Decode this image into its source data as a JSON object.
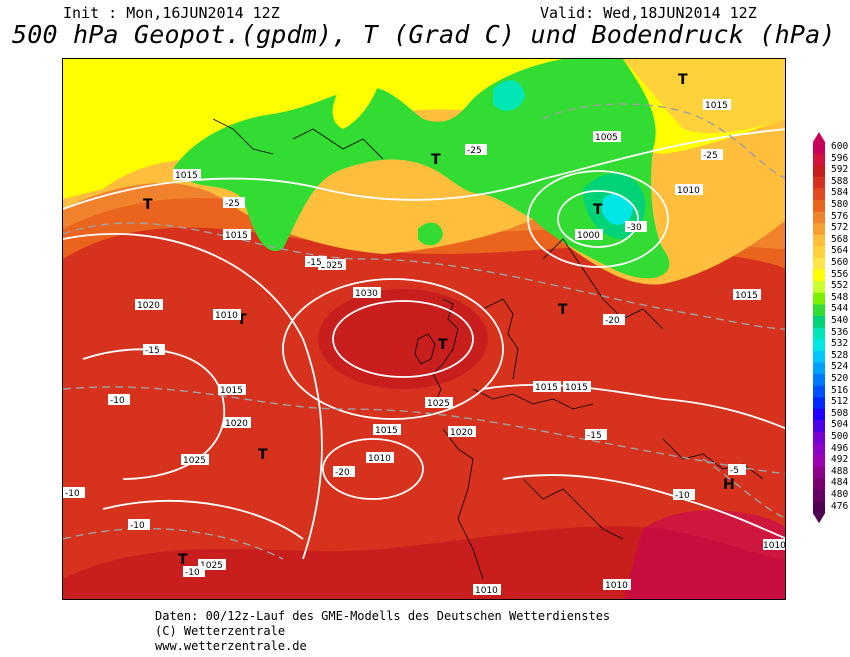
{
  "header": {
    "init": "Init : Mon,16JUN2014 12Z",
    "valid": "Valid: Wed,18JUN2014 12Z",
    "title": "500 hPa Geopot.(gpdm), T (Grad C) und Bodendruck (hPa)"
  },
  "map": {
    "pressure_labels": [
      "1010",
      "1015",
      "1020",
      "1025",
      "1030",
      "1005",
      "1000"
    ],
    "temperature_labels": [
      "-5",
      "-10",
      "-15",
      "-20",
      "-25",
      "-30"
    ],
    "high_symbol": "H",
    "low_symbol": "T"
  },
  "scale": {
    "labels": [
      "600",
      "596",
      "592",
      "588",
      "584",
      "580",
      "576",
      "572",
      "568",
      "564",
      "560",
      "556",
      "552",
      "548",
      "544",
      "540",
      "536",
      "532",
      "528",
      "524",
      "520",
      "516",
      "512",
      "508",
      "504",
      "500",
      "496",
      "492",
      "488",
      "484",
      "480",
      "476"
    ],
    "colors": [
      "#c8005a",
      "#d3143c",
      "#c81e1e",
      "#d7321e",
      "#e14b1e",
      "#eb641e",
      "#f0822d",
      "#f5a032",
      "#ffbe3c",
      "#ffd23c",
      "#ffe646",
      "#ffff00",
      "#c8ff32",
      "#78f000",
      "#32dc32",
      "#00d278",
      "#00e6b4",
      "#00e6e6",
      "#00c8ff",
      "#00a0ff",
      "#0078ff",
      "#0050ff",
      "#0028ff",
      "#1e00ff",
      "#5000e6",
      "#7800d2",
      "#8c00c8",
      "#a000b4",
      "#8c008c",
      "#78006e",
      "#640064",
      "#500050"
    ]
  },
  "footer": {
    "line1": "Daten: 00/12z-Lauf des GME-Modells des Deutschen Wetterdienstes",
    "line2": "(C) Wetterzentrale",
    "line3": "www.wetterzentrale.de"
  }
}
